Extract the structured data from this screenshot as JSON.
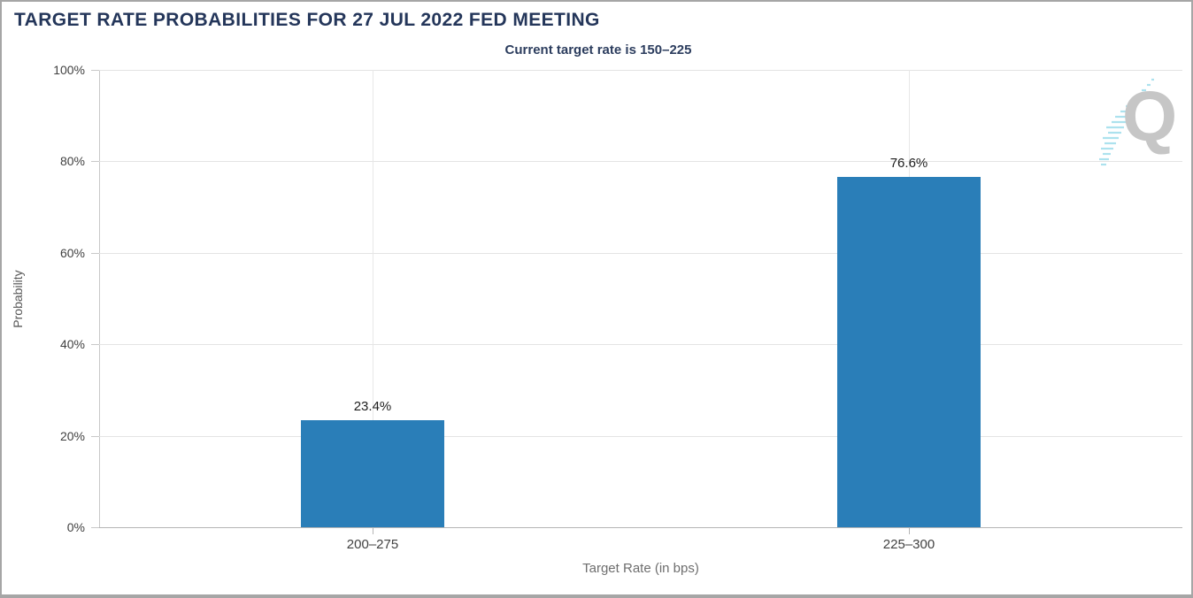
{
  "page": {
    "title": "TARGET RATE PROBABILITIES FOR 27 JUL 2022 FED MEETING"
  },
  "chart_data": {
    "type": "bar",
    "title": "TARGET RATE PROBABILITIES FOR 27 JUL 2022 FED MEETING",
    "subtitle": "Current target rate is 150–225",
    "categories": [
      "200–275",
      "225–300"
    ],
    "values": [
      23.4,
      76.6
    ],
    "value_labels": [
      "23.4%",
      "76.6%"
    ],
    "xlabel": "Target Rate (in bps)",
    "ylabel": "Probability",
    "ylim": [
      0,
      100
    ],
    "ytick_values": [
      0,
      20,
      40,
      60,
      80,
      100
    ],
    "ytick_labels": [
      "0%",
      "20%",
      "40%",
      "60%",
      "80%",
      "100%"
    ],
    "grid": true,
    "legend_position": "none",
    "bar_color": "#2A7EB8"
  },
  "watermark": {
    "letter": "Q"
  },
  "colors": {
    "title_navy": "#24365A",
    "bar_blue": "#2A7EB8",
    "watermark_gray": "#C6C6C6",
    "watermark_teal": "#ACE2EE"
  }
}
